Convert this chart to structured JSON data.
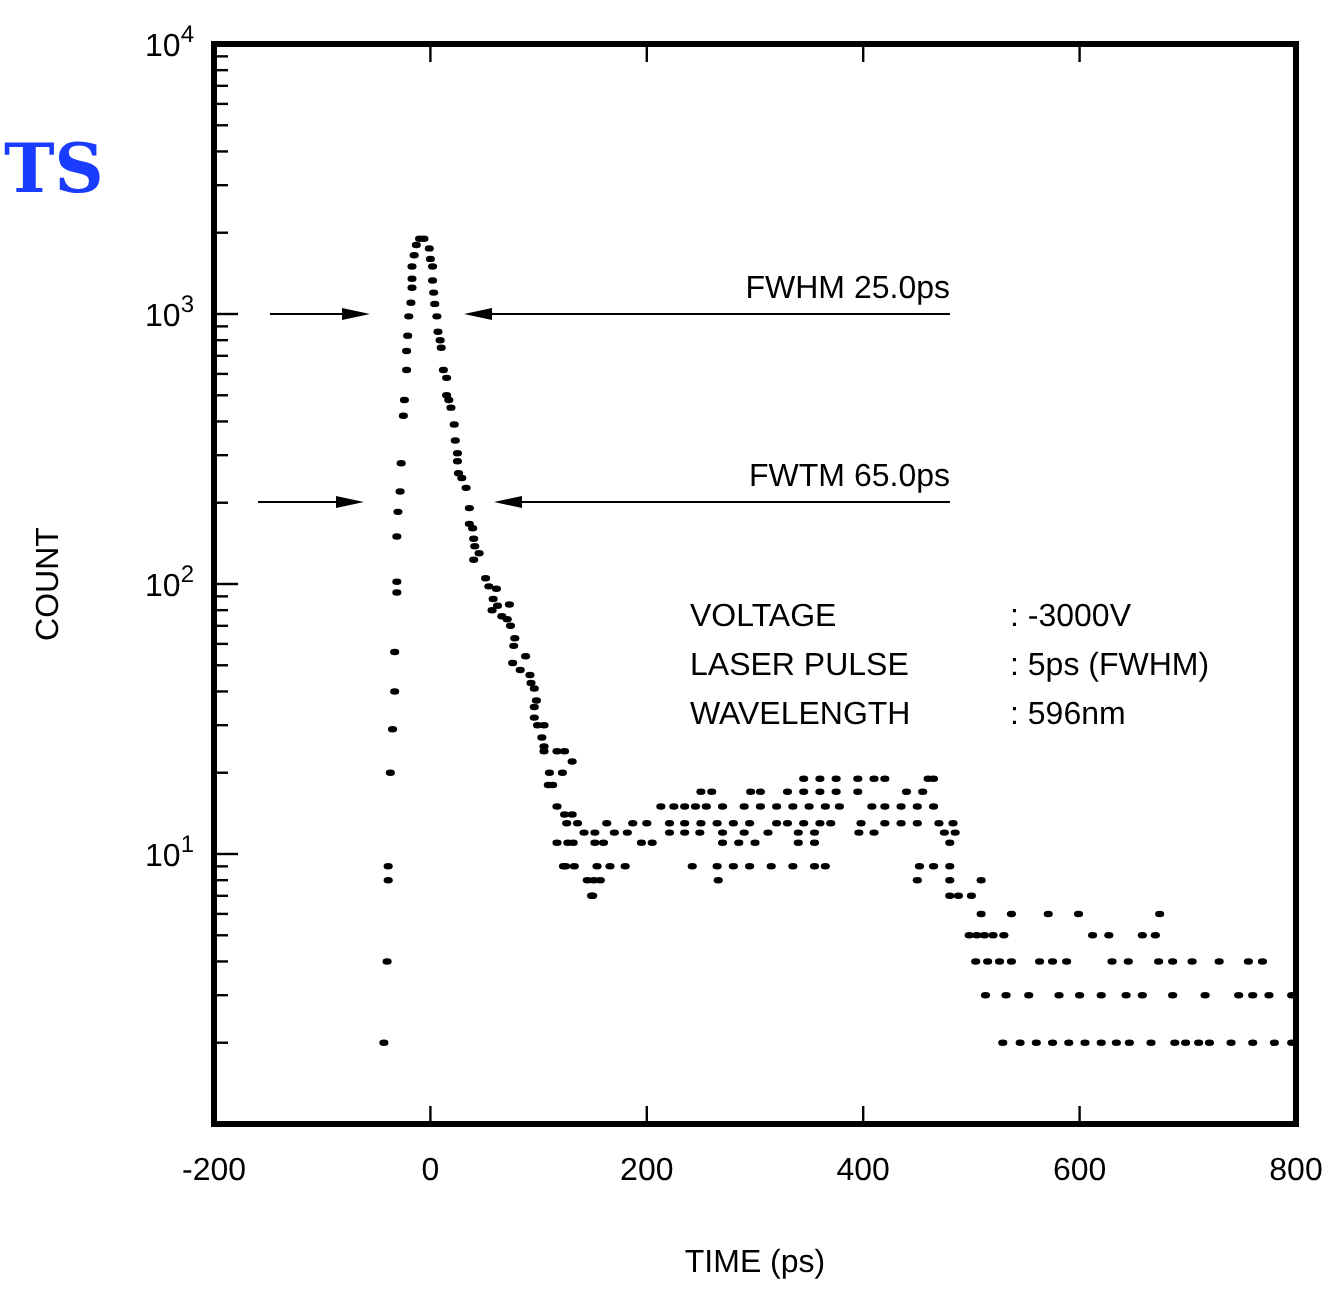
{
  "chart_data": {
    "type": "scatter",
    "title": "TS",
    "xlabel": "TIME (ps)",
    "ylabel": "COUNT",
    "xlim": [
      -200,
      800
    ],
    "xticks": [
      -200,
      0,
      200,
      400,
      600,
      800
    ],
    "ylim": [
      1,
      10000
    ],
    "yticks": [
      {
        "value": 1,
        "label": null
      },
      {
        "value": 2,
        "label": null
      },
      {
        "value": 3,
        "label": null
      },
      {
        "value": 4,
        "label": null
      },
      {
        "value": 5,
        "label": null
      },
      {
        "value": 6,
        "label": null
      },
      {
        "value": 7,
        "label": null
      },
      {
        "value": 8,
        "label": null
      },
      {
        "value": 9,
        "label": null
      },
      {
        "value": 10,
        "label": "10$^{1}$"
      },
      {
        "value": 20,
        "label": null
      },
      {
        "value": 30,
        "label": null
      },
      {
        "value": 40,
        "label": null
      },
      {
        "value": 50,
        "label": null
      },
      {
        "value": 60,
        "label": null
      },
      {
        "value": 70,
        "label": null
      },
      {
        "value": 80,
        "label": null
      },
      {
        "value": 90,
        "label": null
      },
      {
        "value": 100,
        "label": "10$^{2}$"
      },
      {
        "value": 200,
        "label": null
      },
      {
        "value": 300,
        "label": null
      },
      {
        "value": 400,
        "label": null
      },
      {
        "value": 500,
        "label": null
      },
      {
        "value": 600,
        "label": null
      },
      {
        "value": 700,
        "label": null
      },
      {
        "value": 800,
        "label": null
      },
      {
        "value": 900,
        "label": null
      },
      {
        "value": 1000,
        "label": "10$^{3}$"
      },
      {
        "value": 2000,
        "label": null
      },
      {
        "value": 3000,
        "label": null
      },
      {
        "value": 4000,
        "label": null
      },
      {
        "value": 5000,
        "label": null
      },
      {
        "value": 6000,
        "label": null
      },
      {
        "value": 7000,
        "label": null
      },
      {
        "value": 8000,
        "label": null
      },
      {
        "value": 9000,
        "label": null
      },
      {
        "value": 10000,
        "label": "10$^{4}$"
      }
    ],
    "log": "y",
    "grid": false,
    "marker": "circle",
    "annotations": [
      "FWHM 25.0ps",
      "FWTM 65.0ps",
      "VOLTAGE",
      ": -3000V",
      "LASER PULSE",
      ": 5ps (FWHM)",
      "WAVELENGTH",
      ": 596nm"
    ],
    "series": [
      {
        "color": "#000000",
        "x": [
          -43,
          -40,
          -39,
          -39,
          -37,
          -35,
          -33,
          -33,
          -31,
          -31,
          -31,
          -30,
          -28,
          -27,
          -25,
          -24,
          -22,
          -22,
          -21,
          -20,
          -18,
          -17,
          -17,
          -17,
          -15,
          -13,
          -10,
          -6,
          -1,
          0,
          2,
          2,
          3,
          4,
          6,
          7,
          9,
          10,
          12,
          15,
          15,
          17,
          19,
          22,
          23,
          25,
          25,
          26,
          29,
          33,
          36,
          36,
          39,
          40,
          41,
          45,
          40,
          51,
          54,
          61,
          58,
          57,
          62,
          66,
          71,
          73,
          74,
          78,
          77,
          76,
          83,
          88,
          92,
          93,
          96,
          98,
          96,
          96,
          99,
          105,
          103,
          105,
          105,
          117,
          124,
          131,
          122,
          110,
          109,
          113,
          117,
          124,
          131,
          136,
          117,
          132,
          125,
          152,
          151,
          150
        ],
        "values": [
          2,
          4,
          8,
          9,
          20,
          29,
          40,
          56,
          93,
          102,
          150,
          185,
          220,
          280,
          420,
          480,
          620,
          730,
          830,
          980,
          1100,
          1250,
          1350,
          1500,
          1650,
          1800,
          1900,
          1900,
          1750,
          1600,
          1500,
          1330,
          1200,
          1090,
          980,
          860,
          800,
          750,
          620,
          580,
          500,
          480,
          450,
          390,
          340,
          305,
          285,
          257,
          247,
          227,
          191,
          167,
          161,
          147,
          138,
          130,
          123,
          105,
          98,
          96,
          88,
          80,
          83,
          76,
          74,
          84,
          70,
          63,
          59,
          51,
          48,
          54,
          46,
          43,
          41,
          37,
          35,
          32,
          30,
          30,
          27,
          25,
          24,
          24,
          24,
          22,
          20,
          20,
          18,
          18,
          15,
          14,
          14,
          13,
          11,
          11,
          9,
          11,
          8,
          7
        ]
      },
      {
        "color": "#000000",
        "x": [
          345,
          360,
          375,
          395,
          410,
          420,
          460,
          465
        ],
        "values": [
          19,
          19,
          19,
          19,
          19,
          19,
          19,
          19
        ]
      },
      {
        "color": "#000000",
        "x": [
          250,
          260,
          296,
          305,
          330,
          345,
          360,
          375,
          395,
          440,
          455
        ],
        "values": [
          17,
          17,
          17,
          17,
          17,
          17,
          17,
          17,
          17,
          17,
          17
        ]
      },
      {
        "color": "#000000",
        "x": [
          213,
          225,
          235,
          245,
          255,
          270,
          290,
          305,
          320,
          335,
          350,
          365,
          378,
          408,
          420,
          435,
          450,
          465
        ],
        "values": [
          15,
          15,
          15,
          15,
          15,
          15,
          15,
          15,
          15,
          15,
          15,
          15,
          15,
          15,
          15,
          15,
          15,
          15
        ]
      },
      {
        "color": "#000000",
        "x": [
          126,
          163,
          187,
          200,
          221,
          235,
          250,
          265,
          280,
          295,
          320,
          330,
          345,
          360,
          370,
          398,
          420,
          435,
          450,
          470,
          483
        ],
        "values": [
          13,
          13,
          13,
          13,
          13,
          13,
          13,
          13,
          13,
          13,
          13,
          13,
          13,
          13,
          13,
          13,
          13,
          13,
          13,
          13,
          13
        ]
      },
      {
        "color": "#000000",
        "x": [
          142,
          152,
          170,
          182,
          221,
          235,
          249,
          270,
          290,
          312,
          340,
          355,
          396,
          410,
          475,
          485
        ],
        "values": [
          12,
          12,
          12,
          12,
          12,
          12,
          12,
          12,
          12,
          12,
          12,
          12,
          12,
          12,
          12,
          12
        ]
      },
      {
        "color": "#000000",
        "x": [
          127,
          160,
          195,
          205,
          270,
          285,
          300,
          340,
          355,
          480
        ],
        "values": [
          11,
          11,
          11,
          11,
          11,
          11,
          11,
          11,
          11,
          11
        ]
      },
      {
        "color": "#000000",
        "x": [
          123,
          133,
          154,
          166,
          180,
          242,
          265,
          280,
          295,
          315,
          335,
          355,
          365,
          452,
          465,
          480
        ],
        "values": [
          9,
          9,
          9,
          9,
          9,
          9,
          9,
          9,
          9,
          9,
          9,
          9,
          9,
          9,
          9,
          9
        ]
      },
      {
        "color": "#000000",
        "x": [
          145,
          157,
          266,
          450,
          480,
          509
        ],
        "values": [
          8,
          8,
          8,
          8,
          8,
          8
        ]
      },
      {
        "color": "#000000",
        "x": [
          149,
          480,
          488,
          500
        ],
        "values": [
          7,
          7,
          7,
          7
        ]
      },
      {
        "color": "#000000",
        "x": [
          509,
          537,
          571,
          599,
          674
        ],
        "values": [
          6,
          6,
          6,
          6,
          6
        ]
      },
      {
        "color": "#000000",
        "x": [
          498,
          505,
          512,
          520,
          530,
          612,
          627,
          658,
          670
        ],
        "values": [
          5,
          5,
          5,
          5,
          5,
          5,
          5,
          5,
          5
        ]
      },
      {
        "color": "#000000",
        "x": [
          504,
          515,
          526,
          537,
          563,
          575,
          588,
          630,
          645,
          673,
          686,
          704,
          729,
          756,
          769
        ],
        "values": [
          4,
          4,
          4,
          4,
          4,
          4,
          4,
          4,
          4,
          4,
          4,
          4,
          4,
          4,
          4
        ]
      },
      {
        "color": "#000000",
        "x": [
          513,
          532,
          553,
          581,
          600,
          620,
          643,
          658,
          686,
          716,
          747,
          760,
          775,
          796
        ],
        "values": [
          3,
          3,
          3,
          3,
          3,
          3,
          3,
          3,
          3,
          3,
          3,
          3,
          3,
          3
        ]
      },
      {
        "color": "#000000",
        "x": [
          529,
          545,
          560,
          575,
          590,
          605,
          620,
          634,
          646,
          666,
          688,
          698,
          710,
          720,
          740,
          760,
          780,
          796
        ],
        "values": [
          2,
          2,
          2,
          2,
          2,
          2,
          2,
          2,
          2,
          2,
          2,
          2,
          2,
          2,
          2,
          2,
          2,
          2
        ]
      }
    ]
  }
}
